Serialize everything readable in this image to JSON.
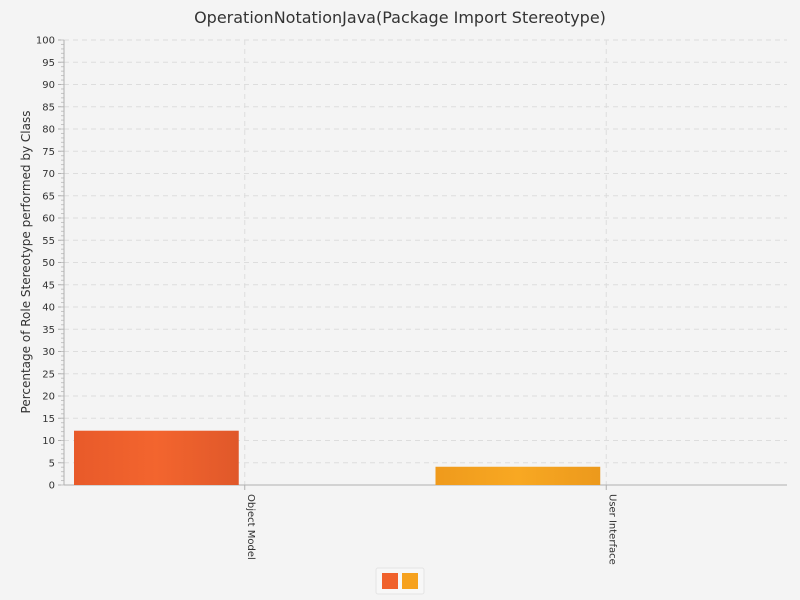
{
  "chart_data": {
    "type": "bar",
    "title": "OperationNotationJava(Package Import Stereotype)",
    "xlabel": "",
    "ylabel": "Percentage of Role Stereotype performed by Class",
    "categories": [
      "Object Model",
      "User Interface"
    ],
    "values": [
      12.2,
      4.1
    ],
    "bar_colors": [
      "#f0612c",
      "#f6a11e"
    ],
    "ylim": [
      0,
      100
    ],
    "ytick_step": 5,
    "grid": true,
    "legend": {
      "placement": "bottom-center",
      "swatches": [
        "#f0612c",
        "#f6a11e"
      ]
    }
  }
}
